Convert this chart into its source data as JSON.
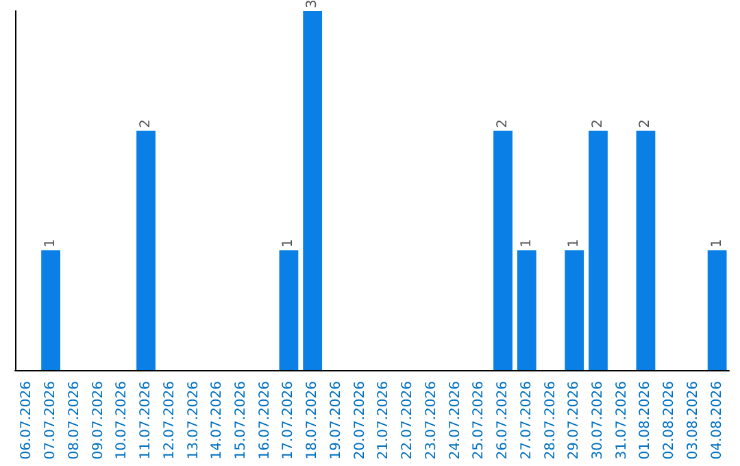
{
  "chart_data": {
    "type": "bar",
    "categories": [
      "06.07.2026",
      "07.07.2026",
      "08.07.2026",
      "09.07.2026",
      "10.07.2026",
      "11.07.2026",
      "12.07.2026",
      "13.07.2026",
      "14.07.2026",
      "15.07.2026",
      "16.07.2026",
      "17.07.2026",
      "18.07.2026",
      "19.07.2026",
      "20.07.2026",
      "21.07.2026",
      "22.07.2026",
      "23.07.2026",
      "24.07.2026",
      "25.07.2026",
      "26.07.2026",
      "27.07.2026",
      "28.07.2026",
      "29.07.2026",
      "30.07.2026",
      "31.07.2026",
      "01.08.2026",
      "02.08.2026",
      "03.08.2026",
      "04.08.2026"
    ],
    "values": [
      0,
      1,
      0,
      0,
      0,
      2,
      0,
      0,
      0,
      0,
      0,
      1,
      3,
      0,
      0,
      0,
      0,
      0,
      0,
      0,
      2,
      1,
      0,
      1,
      2,
      0,
      2,
      0,
      0,
      1
    ],
    "value_labels": [
      null,
      "1",
      null,
      null,
      null,
      "2",
      null,
      null,
      null,
      null,
      null,
      "1",
      "3",
      null,
      null,
      null,
      null,
      null,
      null,
      null,
      "2",
      "1",
      null,
      "1",
      "2",
      null,
      "2",
      null,
      null,
      "1"
    ],
    "color": "#0a7fe6",
    "tick_labels": "x",
    "grid": false
  }
}
